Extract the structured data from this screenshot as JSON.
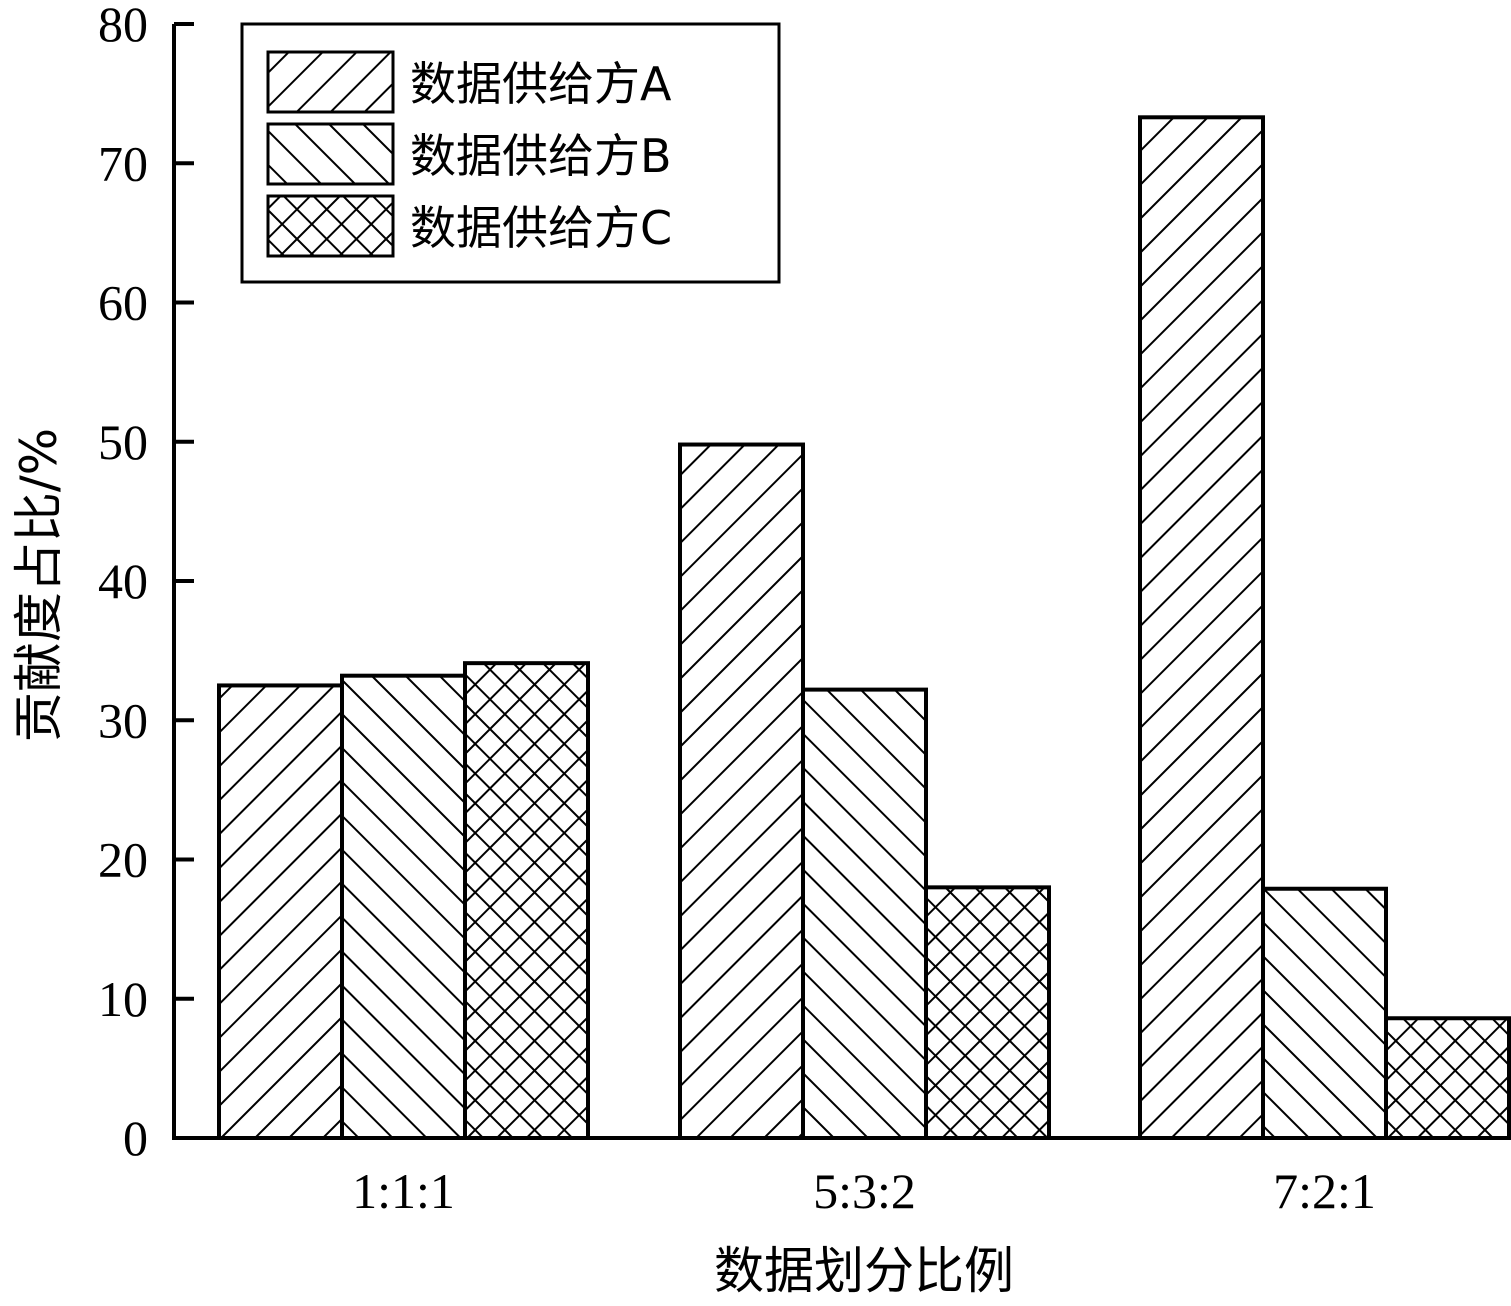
{
  "chart_data": {
    "type": "bar",
    "title": "",
    "xlabel": "数据划分比例",
    "ylabel": "贡献度占比/%",
    "ylim": [
      0,
      80
    ],
    "yticks": [
      "0",
      "10",
      "20",
      "30",
      "40",
      "50",
      "60",
      "70",
      "80"
    ],
    "categories": [
      "1:1:1",
      "5:3:2",
      "7:2:1"
    ],
    "series": [
      {
        "name": "数据供给方A",
        "values": [
          32.5,
          49.8,
          73.3
        ],
        "pattern": "diagonal-forward"
      },
      {
        "name": "数据供给方B",
        "values": [
          33.2,
          32.2,
          17.9
        ],
        "pattern": "diagonal-backward"
      },
      {
        "name": "数据供给方C",
        "values": [
          34.1,
          18.0,
          8.6
        ],
        "pattern": "crosshatch"
      }
    ],
    "grid": false,
    "legend_position": "top-left",
    "colors": {
      "stroke": "#000000",
      "fill": "#ffffff"
    }
  }
}
